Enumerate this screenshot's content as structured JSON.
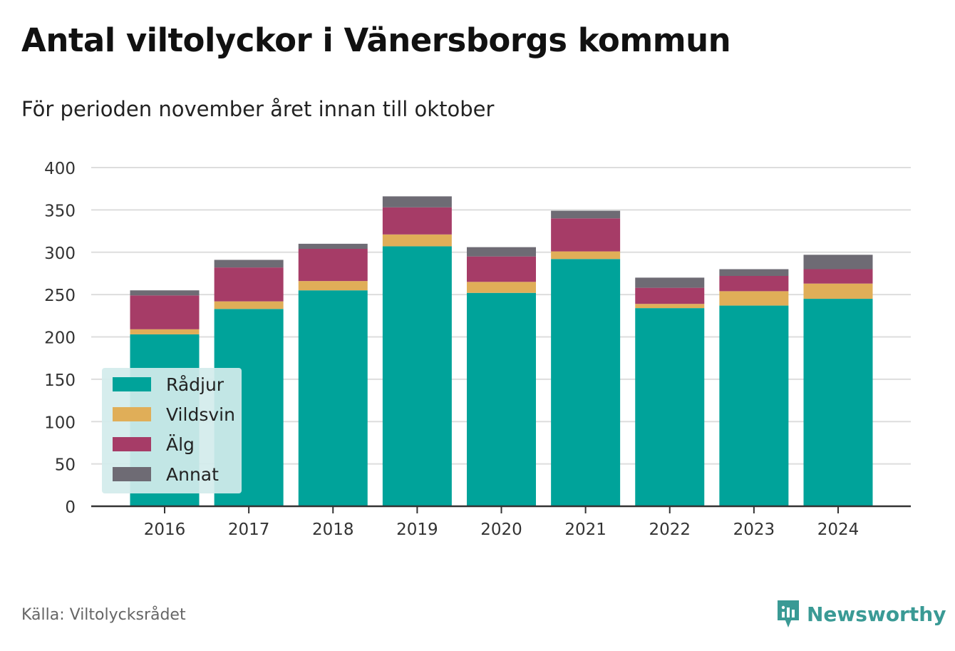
{
  "header": {
    "title": "Antal viltolyckor i Vänersborgs kommun",
    "subtitle": "För perioden november året innan till oktober"
  },
  "footer": {
    "source": "Källa: Viltolycksrådet",
    "brand": "Newsworthy",
    "brand_icon": "newsworthy-logo-icon"
  },
  "colors": {
    "Rådjur": "#00a39a",
    "Vildsvin": "#e0ae58",
    "Älg": "#a63c67",
    "Annat": "#6e6b74",
    "grid": "#dddddd",
    "axis": "#333333",
    "legend_bg": "#d3ecec"
  },
  "chart_data": {
    "type": "bar",
    "stacked": true,
    "categories": [
      "2016",
      "2017",
      "2018",
      "2019",
      "2020",
      "2021",
      "2022",
      "2023",
      "2024"
    ],
    "series": [
      {
        "name": "Rådjur",
        "values": [
          203,
          233,
          255,
          307,
          252,
          292,
          234,
          237,
          245
        ]
      },
      {
        "name": "Vildsvin",
        "values": [
          6,
          9,
          11,
          14,
          13,
          9,
          5,
          17,
          18
        ]
      },
      {
        "name": "Älg",
        "values": [
          40,
          40,
          38,
          32,
          30,
          39,
          19,
          18,
          17
        ]
      },
      {
        "name": "Annat",
        "values": [
          6,
          9,
          6,
          13,
          11,
          9,
          12,
          8,
          17
        ]
      }
    ],
    "yticks": [
      0,
      50,
      100,
      150,
      200,
      250,
      300,
      350,
      400
    ],
    "ylim": [
      0,
      400
    ],
    "grid": true,
    "legend_position": "bottom-left"
  }
}
